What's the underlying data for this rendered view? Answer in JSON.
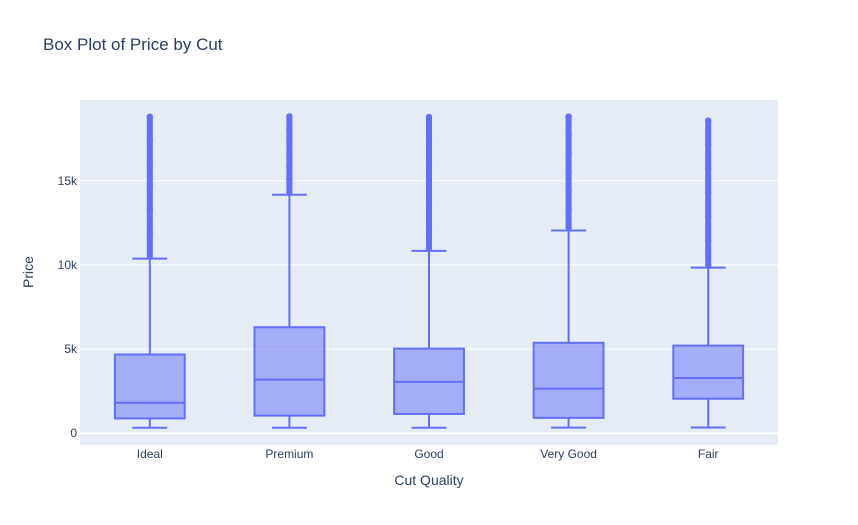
{
  "chart_data": {
    "type": "box",
    "title": "Box Plot of Price by Cut",
    "xlabel": "Cut Quality",
    "ylabel": "Price",
    "ylim": [
      -700,
      19800
    ],
    "yticks": [
      {
        "value": 0,
        "label": "0"
      },
      {
        "value": 5000,
        "label": "5k"
      },
      {
        "value": 10000,
        "label": "10k"
      },
      {
        "value": 15000,
        "label": "15k"
      }
    ],
    "grid": true,
    "categories": [
      "Ideal",
      "Premium",
      "Good",
      "Very Good",
      "Fair"
    ],
    "boxes": [
      {
        "category": "Ideal",
        "min": 326,
        "q1": 878,
        "median": 1810,
        "q3": 4678,
        "max": 10376,
        "outlier_max": 18806
      },
      {
        "category": "Premium",
        "min": 326,
        "q1": 1046,
        "median": 3185,
        "q3": 6296,
        "max": 14167,
        "outlier_max": 18823
      },
      {
        "category": "Good",
        "min": 327,
        "q1": 1145,
        "median": 3050,
        "q3": 5028,
        "max": 10838,
        "outlier_max": 18788
      },
      {
        "category": "Very Good",
        "min": 336,
        "q1": 912,
        "median": 2648,
        "q3": 5373,
        "max": 12044,
        "outlier_max": 18818
      },
      {
        "category": "Fair",
        "min": 337,
        "q1": 2050,
        "median": 3282,
        "q3": 5206,
        "max": 9836,
        "outlier_max": 18574
      }
    ],
    "colors": {
      "box_fill": "#636efa",
      "box_line": "#636efa",
      "plot_bg": "#e5ecf6",
      "grid": "#ffffff",
      "text": "#2a3f5f"
    }
  }
}
